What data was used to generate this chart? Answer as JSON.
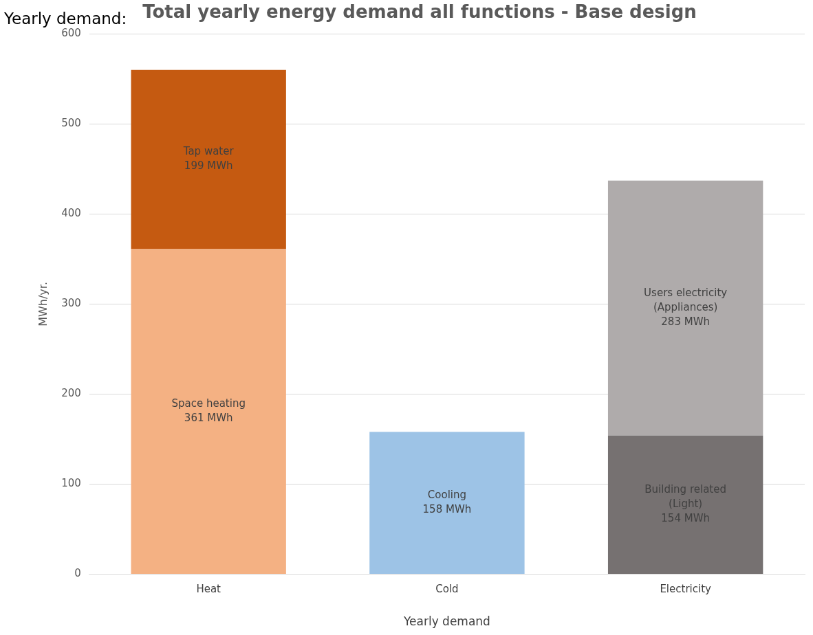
{
  "chart_data": {
    "type": "bar",
    "title": "Total yearly energy demand all functions - Base design",
    "xlabel": "Yearly demand",
    "ylabel": "MWh/yr.",
    "annotations": [
      "Yearly demand:"
    ],
    "categories": [
      "Heat",
      "Cold",
      "Electricity"
    ],
    "stacked": true,
    "series": [
      {
        "name": "Space heating",
        "color": "#f4b183",
        "values": [
          361,
          null,
          null
        ],
        "value_labels": [
          "361 MWh",
          null,
          null
        ]
      },
      {
        "name": "Tap water",
        "color": "#c55a11",
        "values": [
          199,
          null,
          null
        ],
        "value_labels": [
          "199 MWh",
          null,
          null
        ]
      },
      {
        "name": "Cooling",
        "color": "#9dc3e6",
        "values": [
          null,
          158,
          null
        ],
        "value_labels": [
          null,
          "158 MWh",
          null
        ]
      },
      {
        "name": "Building related (Light)",
        "color": "#767171",
        "values": [
          null,
          null,
          154
        ],
        "value_labels": [
          null,
          null,
          "154 MWh"
        ]
      },
      {
        "name": "Users electricity (Appliances)",
        "color": "#afabab",
        "values": [
          null,
          null,
          283
        ],
        "value_labels": [
          null,
          null,
          "283 MWh"
        ]
      }
    ],
    "ylim": [
      0,
      600
    ],
    "yticks": [
      0,
      100,
      200,
      300,
      400,
      500,
      600
    ],
    "grid": "y",
    "legend": false
  }
}
